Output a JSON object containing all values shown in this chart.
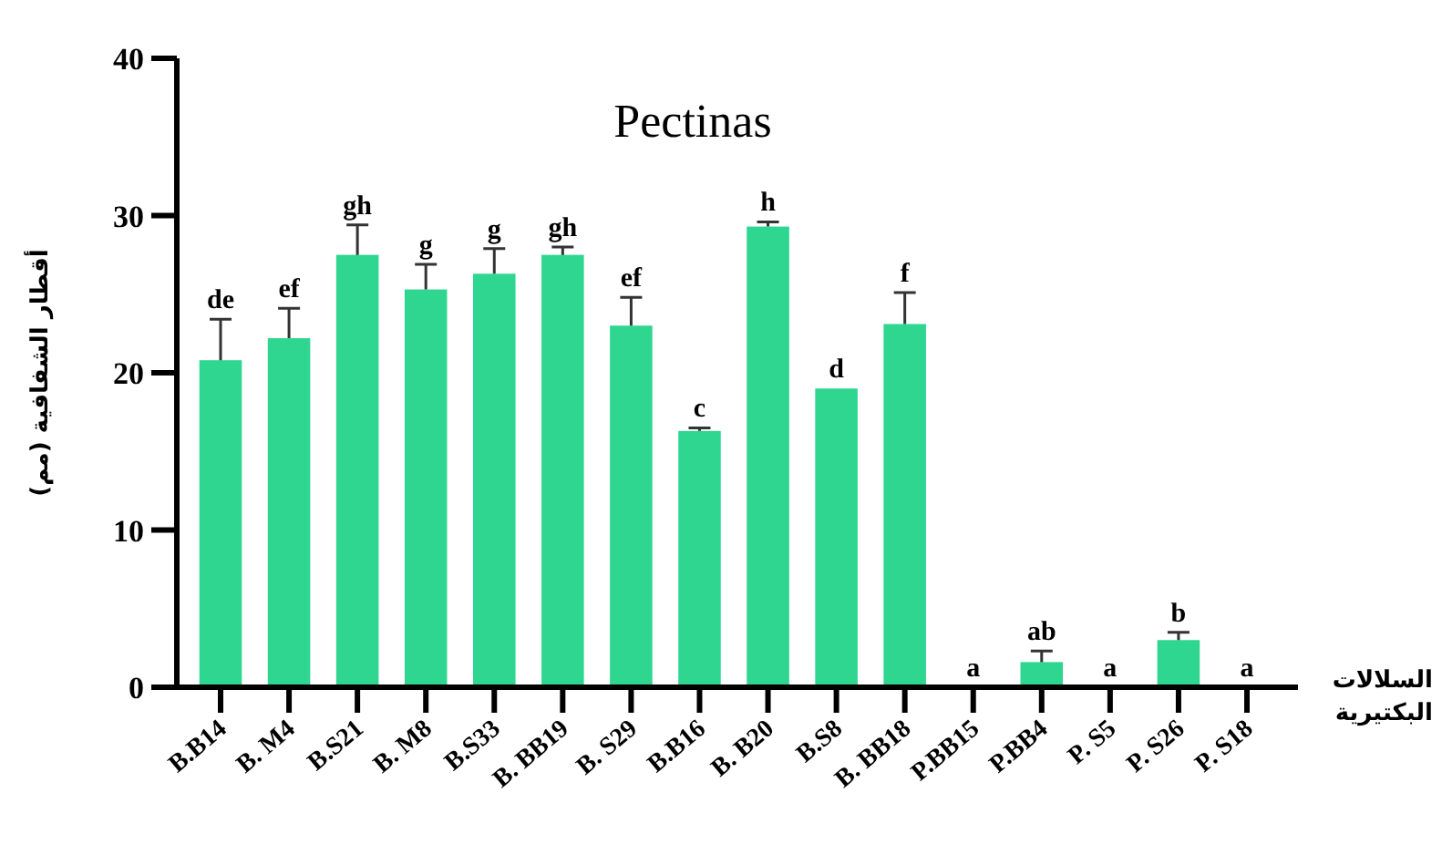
{
  "chart_data": {
    "type": "bar",
    "title": "Pectinas",
    "ylabel": "أقطار الشفافية (مم)",
    "xlabel": "السلالات البكتيرية",
    "categories": [
      "B.B14",
      "B. M4",
      "B.S21",
      "B. M8",
      "B.S33",
      "B. BB19",
      "B. S29",
      "B.B16",
      "B. B20",
      "B.S8",
      "B. BB18",
      "P.BB15",
      "P.BB4",
      "P. S5",
      "P. S26",
      "P. S18"
    ],
    "values": [
      20.8,
      22.2,
      27.5,
      25.3,
      26.3,
      27.5,
      23.0,
      16.3,
      29.3,
      19.0,
      23.1,
      0,
      1.6,
      0,
      3.0,
      0
    ],
    "errors": [
      [
        20.8,
        23.4
      ],
      [
        22.2,
        24.1
      ],
      [
        27.5,
        29.4
      ],
      [
        25.3,
        26.9
      ],
      [
        26.3,
        27.9
      ],
      [
        27.5,
        28.0
      ],
      [
        23.0,
        24.8
      ],
      [
        16.3,
        16.5
      ],
      [
        29.3,
        29.6
      ],
      null,
      [
        23.1,
        25.1
      ],
      null,
      [
        1.6,
        2.3
      ],
      null,
      [
        3.0,
        3.5
      ],
      null
    ],
    "value_labels": [
      "de",
      "ef",
      "gh",
      "g",
      "g",
      "gh",
      "ef",
      "c",
      "h",
      "d",
      "f",
      "a",
      "ab",
      "a",
      "b",
      "a"
    ],
    "color": "#2fd690",
    "ylim": [
      0,
      40
    ],
    "yticks": [
      0,
      10,
      20,
      30,
      40
    ],
    "grid": false
  }
}
